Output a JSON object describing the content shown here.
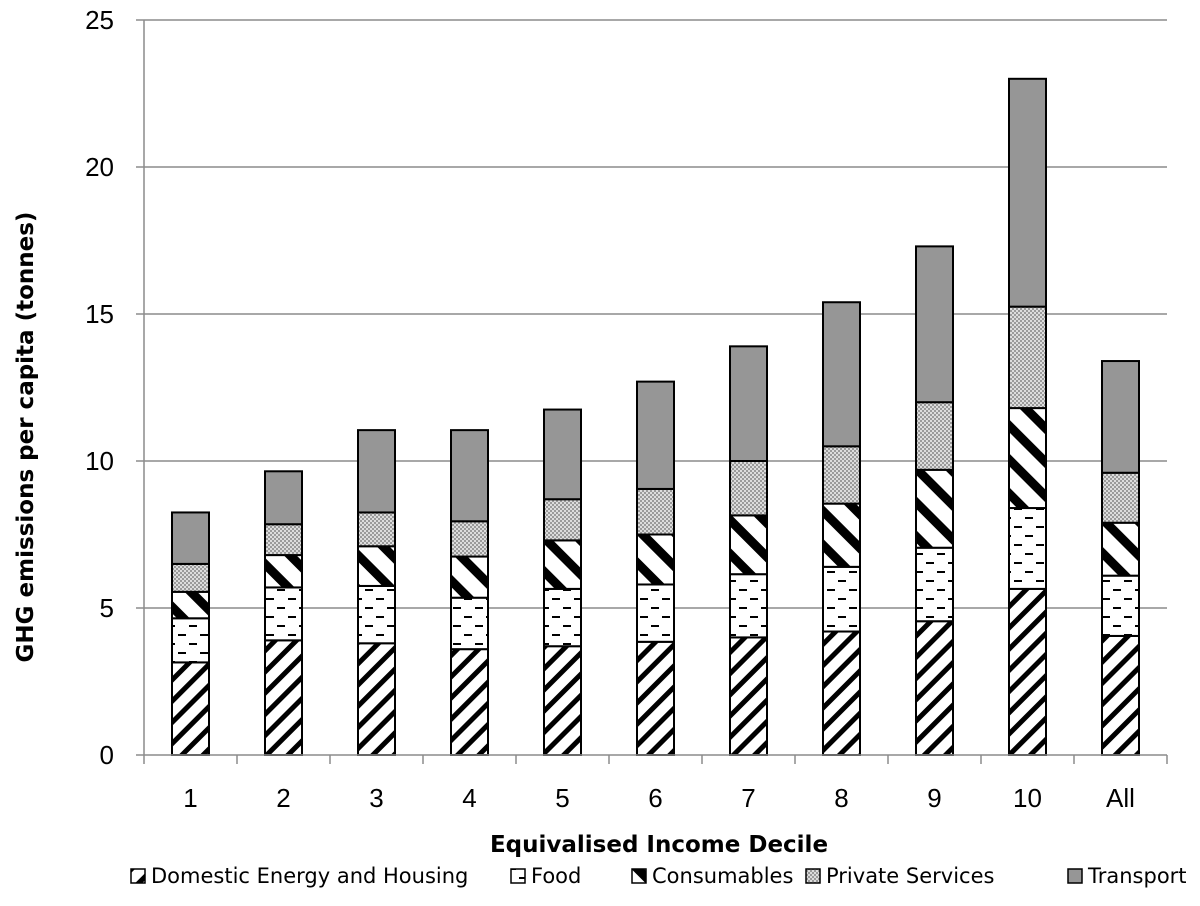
{
  "chart_data": {
    "type": "bar",
    "stacked": true,
    "title": "",
    "xlabel": "Equivalised Income Decile",
    "ylabel": "GHG emissions per capita (tonnes)",
    "ylim": [
      0,
      25
    ],
    "yticks": [
      0,
      5,
      10,
      15,
      20,
      25
    ],
    "grid": "horizontal",
    "legend_position": "bottom",
    "categories": [
      "1",
      "2",
      "3",
      "4",
      "5",
      "6",
      "7",
      "8",
      "9",
      "10",
      "All"
    ],
    "series": [
      {
        "name": "Domestic Energy and Housing",
        "pattern": "diagonal-hatch",
        "color": "#000000",
        "values": [
          3.15,
          3.9,
          3.8,
          3.6,
          3.7,
          3.85,
          4.0,
          4.2,
          4.55,
          5.65,
          4.05
        ]
      },
      {
        "name": "Food",
        "pattern": "dashes",
        "color": "#ffffff",
        "values": [
          1.5,
          1.8,
          1.95,
          1.75,
          1.95,
          1.95,
          2.15,
          2.2,
          2.5,
          2.75,
          2.05
        ]
      },
      {
        "name": "Consumables",
        "pattern": "wide-diagonal-stripes",
        "color": "#000000",
        "values": [
          0.9,
          1.1,
          1.35,
          1.4,
          1.65,
          1.7,
          2.0,
          2.15,
          2.65,
          3.4,
          1.8
        ]
      },
      {
        "name": "Private Services",
        "pattern": "dotted",
        "color": "#c0c0c0",
        "values": [
          0.95,
          1.05,
          1.15,
          1.2,
          1.4,
          1.55,
          1.85,
          1.95,
          2.3,
          3.45,
          1.7
        ]
      },
      {
        "name": "Transport",
        "pattern": "solid",
        "color": "#969696",
        "values": [
          1.75,
          1.8,
          2.8,
          3.1,
          3.05,
          3.65,
          3.9,
          4.9,
          5.3,
          7.75,
          3.8
        ]
      }
    ]
  }
}
